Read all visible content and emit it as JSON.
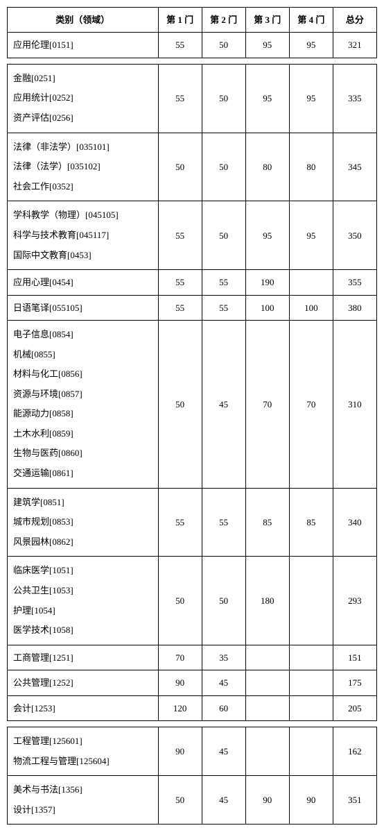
{
  "header": {
    "category": "类别（领域）",
    "c1": "第 1 门",
    "c2": "第 2 门",
    "c3": "第 3 门",
    "c4": "第 4 门",
    "total": "总分"
  },
  "group1": {
    "r0": {
      "cat": [
        "应用伦理[0151]"
      ],
      "v": [
        "55",
        "50",
        "95",
        "95",
        "321"
      ]
    }
  },
  "group2": {
    "r0": {
      "cat": [
        "金融[0251]",
        "应用统计[0252]",
        "资产评估[0256]"
      ],
      "v": [
        "55",
        "50",
        "95",
        "95",
        "335"
      ]
    },
    "r1": {
      "cat": [
        "法律（非法学）[035101]",
        "法律（法学）[035102]",
        "社会工作[0352]"
      ],
      "v": [
        "50",
        "50",
        "80",
        "80",
        "345"
      ]
    },
    "r2": {
      "cat": [
        "学科教学（物理）[045105]",
        "科学与技术教育[045117]",
        "国际中文教育[0453]"
      ],
      "v": [
        "55",
        "50",
        "95",
        "95",
        "350"
      ]
    },
    "r3": {
      "cat": [
        "应用心理[0454]"
      ],
      "v": [
        "55",
        "55",
        "190",
        "",
        "355"
      ]
    },
    "r4": {
      "cat": [
        "日语笔译[055105]"
      ],
      "v": [
        "55",
        "55",
        "100",
        "100",
        "380"
      ]
    },
    "r5": {
      "cat": [
        "电子信息[0854]",
        "机械[0855]",
        "材料与化工[0856]",
        "资源与环境[0857]",
        "能源动力[0858]",
        "土木水利[0859]",
        "生物与医药[0860]",
        "交通运输[0861]"
      ],
      "v": [
        "50",
        "45",
        "70",
        "70",
        "310"
      ]
    },
    "r6": {
      "cat": [
        "建筑学[0851]",
        "城市规划[0853]",
        "风景园林[0862]"
      ],
      "v": [
        "55",
        "55",
        "85",
        "85",
        "340"
      ]
    },
    "r7": {
      "cat": [
        "临床医学[1051]",
        "公共卫生[1053]",
        "护理[1054]",
        "医学技术[1058]"
      ],
      "v": [
        "50",
        "50",
        "180",
        "",
        "293"
      ]
    },
    "r8": {
      "cat": [
        "工商管理[1251]"
      ],
      "v": [
        "70",
        "35",
        "",
        "",
        "151"
      ]
    },
    "r9": {
      "cat": [
        "公共管理[1252]"
      ],
      "v": [
        "90",
        "45",
        "",
        "",
        "175"
      ]
    },
    "r10": {
      "cat": [
        "会计[1253]"
      ],
      "v": [
        "120",
        "60",
        "",
        "",
        "205"
      ]
    }
  },
  "group3": {
    "r0": {
      "cat": [
        "工程管理[125601]",
        "物流工程与管理[125604]"
      ],
      "v": [
        "90",
        "45",
        "",
        "",
        "162"
      ]
    },
    "r1": {
      "cat": [
        "美术与书法[1356]",
        "设计[1357]"
      ],
      "v": [
        "50",
        "45",
        "90",
        "90",
        "351"
      ]
    }
  }
}
